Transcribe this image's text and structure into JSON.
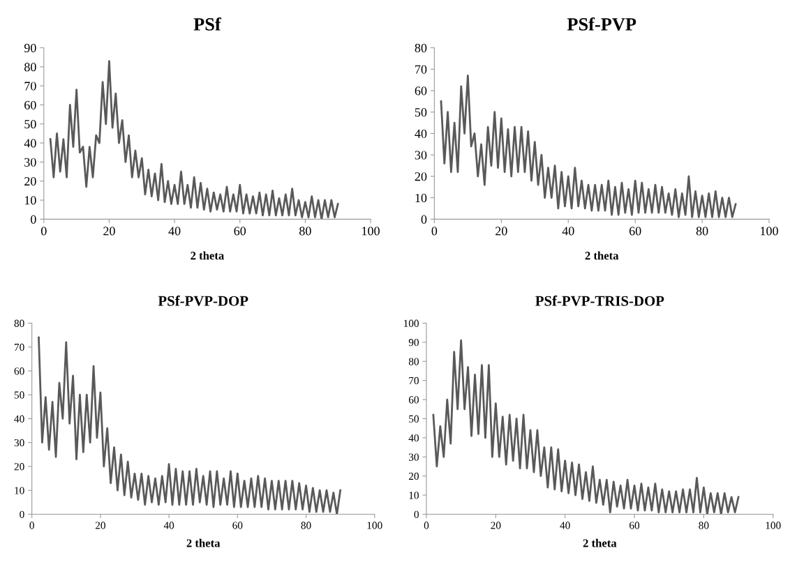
{
  "chart_data": [
    {
      "type": "line",
      "title": "PSf",
      "xlabel": "2 theta",
      "xlim": [
        0,
        100
      ],
      "xticks": [
        0,
        20,
        40,
        60,
        80,
        100
      ],
      "ylim": [
        0,
        90
      ],
      "yticks": [
        0,
        10,
        20,
        30,
        40,
        50,
        60,
        70,
        80,
        90
      ],
      "grid": false,
      "legend": false,
      "marker": "none",
      "line_style": "solid",
      "x": [
        2,
        3,
        4,
        5,
        6,
        7,
        8,
        9,
        10,
        11,
        12,
        13,
        14,
        15,
        16,
        17,
        18,
        19,
        20,
        21,
        22,
        23,
        24,
        25,
        26,
        27,
        28,
        29,
        30,
        31,
        32,
        33,
        34,
        35,
        36,
        37,
        38,
        39,
        40,
        41,
        42,
        43,
        44,
        45,
        46,
        47,
        48,
        49,
        50,
        51,
        52,
        53,
        54,
        55,
        56,
        57,
        58,
        59,
        60,
        61,
        62,
        63,
        64,
        65,
        66,
        67,
        68,
        69,
        70,
        71,
        72,
        73,
        74,
        75,
        76,
        77,
        78,
        79,
        80,
        81,
        82,
        83,
        84,
        85,
        86,
        87,
        88,
        89,
        90
      ],
      "series": [
        {
          "color": "#595959",
          "values": [
            42,
            22,
            45,
            25,
            42,
            22,
            60,
            38,
            68,
            35,
            38,
            17,
            38,
            22,
            44,
            40,
            72,
            50,
            83,
            48,
            66,
            40,
            52,
            30,
            44,
            22,
            36,
            22,
            32,
            13,
            26,
            12,
            24,
            10,
            29,
            9,
            20,
            8,
            18,
            8,
            25,
            8,
            18,
            6,
            22,
            6,
            19,
            5,
            16,
            4,
            14,
            5,
            13,
            4,
            17,
            4,
            13,
            4,
            18,
            3,
            13,
            3,
            12,
            3,
            14,
            2,
            13,
            2,
            15,
            2,
            11,
            2,
            13,
            2,
            16,
            2,
            10,
            1,
            9,
            1,
            12,
            1,
            10,
            0,
            10,
            1,
            10,
            1,
            8
          ]
        }
      ]
    },
    {
      "type": "line",
      "title": "PSf-PVP",
      "xlabel": "2 theta",
      "xlim": [
        0,
        100
      ],
      "xticks": [
        0,
        20,
        40,
        60,
        80,
        100
      ],
      "ylim": [
        0,
        80
      ],
      "yticks": [
        0,
        10,
        20,
        30,
        40,
        50,
        60,
        70,
        80
      ],
      "grid": false,
      "legend": false,
      "marker": "none",
      "line_style": "solid",
      "x": [
        2,
        3,
        4,
        5,
        6,
        7,
        8,
        9,
        10,
        11,
        12,
        13,
        14,
        15,
        16,
        17,
        18,
        19,
        20,
        21,
        22,
        23,
        24,
        25,
        26,
        27,
        28,
        29,
        30,
        31,
        32,
        33,
        34,
        35,
        36,
        37,
        38,
        39,
        40,
        41,
        42,
        43,
        44,
        45,
        46,
        47,
        48,
        49,
        50,
        51,
        52,
        53,
        54,
        55,
        56,
        57,
        58,
        59,
        60,
        61,
        62,
        63,
        64,
        65,
        66,
        67,
        68,
        69,
        70,
        71,
        72,
        73,
        74,
        75,
        76,
        77,
        78,
        79,
        80,
        81,
        82,
        83,
        84,
        85,
        86,
        87,
        88,
        89,
        90
      ],
      "series": [
        {
          "color": "#595959",
          "values": [
            55,
            26,
            50,
            22,
            45,
            22,
            62,
            40,
            67,
            34,
            40,
            20,
            35,
            16,
            43,
            25,
            50,
            24,
            47,
            22,
            42,
            20,
            43,
            22,
            43,
            22,
            41,
            18,
            36,
            16,
            30,
            10,
            24,
            10,
            25,
            5,
            22,
            6,
            20,
            5,
            24,
            6,
            18,
            5,
            16,
            4,
            16,
            4,
            16,
            4,
            18,
            2,
            15,
            2,
            17,
            3,
            14,
            2,
            18,
            3,
            17,
            3,
            14,
            3,
            16,
            3,
            15,
            3,
            12,
            2,
            14,
            1,
            12,
            2,
            20,
            1,
            13,
            1,
            11,
            1,
            12,
            1,
            13,
            1,
            10,
            1,
            10,
            1,
            7
          ]
        }
      ]
    },
    {
      "type": "line",
      "title": "PSf-PVP-DOP",
      "xlabel": "2 theta",
      "xlim": [
        0,
        100
      ],
      "xticks": [
        0,
        20,
        40,
        60,
        80,
        100
      ],
      "ylim": [
        0,
        80
      ],
      "yticks": [
        0,
        10,
        20,
        30,
        40,
        50,
        60,
        70,
        80
      ],
      "grid": false,
      "legend": false,
      "marker": "none",
      "line_style": "solid",
      "x": [
        2,
        3,
        4,
        5,
        6,
        7,
        8,
        9,
        10,
        11,
        12,
        13,
        14,
        15,
        16,
        17,
        18,
        19,
        20,
        21,
        22,
        23,
        24,
        25,
        26,
        27,
        28,
        29,
        30,
        31,
        32,
        33,
        34,
        35,
        36,
        37,
        38,
        39,
        40,
        41,
        42,
        43,
        44,
        45,
        46,
        47,
        48,
        49,
        50,
        51,
        52,
        53,
        54,
        55,
        56,
        57,
        58,
        59,
        60,
        61,
        62,
        63,
        64,
        65,
        66,
        67,
        68,
        69,
        70,
        71,
        72,
        73,
        74,
        75,
        76,
        77,
        78,
        79,
        80,
        81,
        82,
        83,
        84,
        85,
        86,
        87,
        88,
        89,
        90
      ],
      "series": [
        {
          "color": "#595959",
          "values": [
            74,
            30,
            49,
            27,
            47,
            24,
            55,
            40,
            72,
            38,
            58,
            23,
            50,
            26,
            50,
            30,
            62,
            32,
            51,
            20,
            36,
            13,
            28,
            10,
            25,
            8,
            22,
            7,
            17,
            6,
            17,
            4,
            16,
            5,
            15,
            4,
            16,
            5,
            21,
            4,
            19,
            4,
            18,
            4,
            18,
            4,
            19,
            5,
            16,
            4,
            18,
            3,
            18,
            4,
            15,
            4,
            18,
            3,
            17,
            3,
            14,
            3,
            15,
            3,
            16,
            3,
            15,
            2,
            14,
            2,
            14,
            2,
            14,
            2,
            14,
            2,
            13,
            2,
            12,
            1,
            11,
            1,
            10,
            1,
            10,
            1,
            9,
            0,
            10
          ]
        }
      ]
    },
    {
      "type": "line",
      "title": "PSf-PVP-TRIS-DOP",
      "xlabel": "2 theta",
      "xlim": [
        0,
        100
      ],
      "xticks": [
        0,
        20,
        40,
        60,
        80,
        100
      ],
      "ylim": [
        0,
        100
      ],
      "yticks": [
        0,
        10,
        20,
        30,
        40,
        50,
        60,
        70,
        80,
        90,
        100
      ],
      "grid": false,
      "legend": false,
      "marker": "none",
      "line_style": "solid",
      "x": [
        2,
        3,
        4,
        5,
        6,
        7,
        8,
        9,
        10,
        11,
        12,
        13,
        14,
        15,
        16,
        17,
        18,
        19,
        20,
        21,
        22,
        23,
        24,
        25,
        26,
        27,
        28,
        29,
        30,
        31,
        32,
        33,
        34,
        35,
        36,
        37,
        38,
        39,
        40,
        41,
        42,
        43,
        44,
        45,
        46,
        47,
        48,
        49,
        50,
        51,
        52,
        53,
        54,
        55,
        56,
        57,
        58,
        59,
        60,
        61,
        62,
        63,
        64,
        65,
        66,
        67,
        68,
        69,
        70,
        71,
        72,
        73,
        74,
        75,
        76,
        77,
        78,
        79,
        80,
        81,
        82,
        83,
        84,
        85,
        86,
        87,
        88,
        89,
        90
      ],
      "series": [
        {
          "color": "#595959",
          "values": [
            52,
            25,
            46,
            30,
            60,
            37,
            85,
            55,
            91,
            55,
            77,
            41,
            73,
            42,
            78,
            40,
            78,
            30,
            58,
            30,
            51,
            26,
            52,
            28,
            50,
            24,
            52,
            24,
            44,
            22,
            44,
            20,
            35,
            14,
            35,
            13,
            34,
            12,
            28,
            11,
            27,
            10,
            26,
            8,
            22,
            7,
            25,
            6,
            18,
            5,
            18,
            1,
            17,
            4,
            15,
            3,
            18,
            3,
            15,
            2,
            16,
            2,
            14,
            2,
            16,
            1,
            13,
            1,
            12,
            1,
            12,
            1,
            13,
            1,
            13,
            1,
            19,
            1,
            14,
            0,
            11,
            1,
            11,
            0,
            11,
            1,
            9,
            1,
            9
          ]
        }
      ]
    }
  ]
}
